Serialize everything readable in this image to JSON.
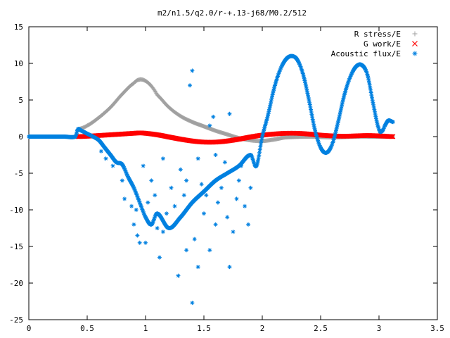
{
  "chart_data": {
    "type": "scatter",
    "title": "m2/n1.5/q2.0/r-+.13-j68/M0.2/512",
    "xlabel": "",
    "ylabel": "",
    "xlim": [
      0,
      3.5
    ],
    "ylim": [
      -25,
      15
    ],
    "x_ticks": [
      0,
      0.5,
      1,
      1.5,
      2,
      2.5,
      3,
      3.5
    ],
    "x_tick_labels": [
      "0",
      "0.5",
      "1",
      "1.5",
      "2",
      "2.5",
      "3",
      "3.5"
    ],
    "y_ticks": [
      -25,
      -20,
      -15,
      -10,
      -5,
      0,
      5,
      10,
      15
    ],
    "y_tick_labels": [
      "-25",
      "-20",
      "-15",
      "-10",
      "-5",
      "0",
      "5",
      "10",
      "15"
    ],
    "grid": false,
    "legend_position": "top-right",
    "series": [
      {
        "name": "R stress/E",
        "marker": "plus",
        "color": "#a0a0a0",
        "points": [
          [
            0.42,
            1.0
          ],
          [
            0.5,
            1.5
          ],
          [
            0.6,
            2.6
          ],
          [
            0.7,
            4.0
          ],
          [
            0.8,
            5.8
          ],
          [
            0.9,
            7.3
          ],
          [
            0.95,
            7.8
          ],
          [
            1.0,
            7.6
          ],
          [
            1.05,
            6.9
          ],
          [
            1.1,
            5.7
          ],
          [
            1.2,
            4.0
          ],
          [
            1.3,
            2.8
          ],
          [
            1.4,
            2.0
          ],
          [
            1.5,
            1.4
          ],
          [
            1.6,
            0.8
          ],
          [
            1.7,
            0.3
          ],
          [
            1.8,
            -0.2
          ],
          [
            1.9,
            -0.5
          ],
          [
            2.0,
            -0.6
          ],
          [
            2.1,
            -0.4
          ],
          [
            2.2,
            -0.1
          ],
          [
            2.4,
            0.0
          ],
          [
            2.6,
            -0.1
          ],
          [
            2.8,
            0.0
          ],
          [
            3.0,
            0.0
          ],
          [
            3.12,
            0.0
          ]
        ]
      },
      {
        "name": "G work/E",
        "marker": "cross",
        "color": "#ff0000",
        "points": [
          [
            0.42,
            0.0
          ],
          [
            0.5,
            0.05
          ],
          [
            0.6,
            0.15
          ],
          [
            0.7,
            0.25
          ],
          [
            0.8,
            0.35
          ],
          [
            0.9,
            0.45
          ],
          [
            0.95,
            0.5
          ],
          [
            1.0,
            0.45
          ],
          [
            1.1,
            0.25
          ],
          [
            1.2,
            -0.05
          ],
          [
            1.3,
            -0.35
          ],
          [
            1.4,
            -0.6
          ],
          [
            1.5,
            -0.75
          ],
          [
            1.6,
            -0.75
          ],
          [
            1.7,
            -0.6
          ],
          [
            1.8,
            -0.35
          ],
          [
            1.9,
            -0.05
          ],
          [
            2.0,
            0.2
          ],
          [
            2.1,
            0.35
          ],
          [
            2.2,
            0.45
          ],
          [
            2.3,
            0.45
          ],
          [
            2.4,
            0.35
          ],
          [
            2.5,
            0.2
          ],
          [
            2.6,
            0.1
          ],
          [
            2.7,
            0.05
          ],
          [
            2.8,
            0.1
          ],
          [
            2.9,
            0.15
          ],
          [
            3.0,
            0.1
          ],
          [
            3.12,
            0.0
          ]
        ]
      },
      {
        "name": "Acoustic flux/E",
        "marker": "star",
        "color": "#0080e0",
        "points": [
          [
            0.0,
            0.0
          ],
          [
            0.1,
            0.0
          ],
          [
            0.2,
            0.0
          ],
          [
            0.3,
            0.0
          ],
          [
            0.4,
            0.0
          ],
          [
            0.42,
            1.0
          ],
          [
            0.45,
            0.8
          ],
          [
            0.5,
            0.4
          ],
          [
            0.55,
            0.0
          ],
          [
            0.6,
            -0.5
          ],
          [
            0.65,
            -1.5
          ],
          [
            0.7,
            -2.5
          ],
          [
            0.75,
            -3.5
          ],
          [
            0.8,
            -3.8
          ],
          [
            0.85,
            -5.5
          ],
          [
            0.9,
            -7.0
          ],
          [
            0.95,
            -9.0
          ],
          [
            1.0,
            -11.0
          ],
          [
            1.05,
            -12.0
          ],
          [
            1.1,
            -10.5
          ],
          [
            1.2,
            -12.5
          ],
          [
            1.3,
            -11.0
          ],
          [
            1.4,
            -9.0
          ],
          [
            1.5,
            -7.5
          ],
          [
            1.6,
            -6.0
          ],
          [
            1.7,
            -5.0
          ],
          [
            1.8,
            -4.0
          ],
          [
            1.9,
            -2.5
          ],
          [
            1.95,
            -4.0
          ],
          [
            2.0,
            0.0
          ],
          [
            2.05,
            3.0
          ],
          [
            2.1,
            6.5
          ],
          [
            2.15,
            9.0
          ],
          [
            2.2,
            10.5
          ],
          [
            2.25,
            11.0
          ],
          [
            2.3,
            10.5
          ],
          [
            2.35,
            8.5
          ],
          [
            2.4,
            5.0
          ],
          [
            2.45,
            1.0
          ],
          [
            2.5,
            -1.5
          ],
          [
            2.55,
            -2.2
          ],
          [
            2.6,
            -1.0
          ],
          [
            2.65,
            2.0
          ],
          [
            2.7,
            5.5
          ],
          [
            2.75,
            8.0
          ],
          [
            2.8,
            9.5
          ],
          [
            2.85,
            9.8
          ],
          [
            2.9,
            8.5
          ],
          [
            2.95,
            4.5
          ],
          [
            3.0,
            1.0
          ],
          [
            3.03,
            0.8
          ],
          [
            3.05,
            1.5
          ],
          [
            3.08,
            2.2
          ],
          [
            3.12,
            2.0
          ],
          [
            0.62,
            -2.0
          ],
          [
            0.66,
            -3.0
          ],
          [
            0.72,
            -4.0
          ],
          [
            0.8,
            -6.0
          ],
          [
            0.82,
            -8.5
          ],
          [
            0.88,
            -9.5
          ],
          [
            0.9,
            -12.0
          ],
          [
            0.93,
            -13.5
          ],
          [
            0.95,
            -14.5
          ],
          [
            1.0,
            -14.5
          ],
          [
            1.02,
            -9.0
          ],
          [
            1.08,
            -8.0
          ],
          [
            1.12,
            -16.5
          ],
          [
            1.15,
            -13.0
          ],
          [
            1.18,
            -10.5
          ],
          [
            1.22,
            -7.0
          ],
          [
            1.25,
            -9.5
          ],
          [
            1.28,
            -19.0
          ],
          [
            1.3,
            -4.5
          ],
          [
            1.33,
            -8.0
          ],
          [
            1.35,
            -6.0
          ],
          [
            1.38,
            7.0
          ],
          [
            1.4,
            9.0
          ],
          [
            1.4,
            -22.7
          ],
          [
            1.42,
            -14.0
          ],
          [
            1.45,
            -3.0
          ],
          [
            1.48,
            -6.5
          ],
          [
            1.5,
            -10.5
          ],
          [
            1.52,
            -8.0
          ],
          [
            1.55,
            -15.5
          ],
          [
            1.58,
            2.7
          ],
          [
            1.6,
            -12.0
          ],
          [
            1.62,
            -9.0
          ],
          [
            1.65,
            -7.0
          ],
          [
            1.68,
            -3.5
          ],
          [
            1.7,
            -11.0
          ],
          [
            1.72,
            3.1
          ],
          [
            1.72,
            -17.8
          ],
          [
            1.75,
            -13.0
          ],
          [
            1.78,
            -8.5
          ],
          [
            1.8,
            -6.0
          ],
          [
            1.82,
            -4.0
          ],
          [
            1.85,
            -9.5
          ],
          [
            1.88,
            -12.0
          ],
          [
            1.9,
            -7.0
          ],
          [
            1.45,
            -17.8
          ],
          [
            1.35,
            -15.5
          ],
          [
            1.25,
            -12.0
          ],
          [
            1.55,
            1.5
          ],
          [
            1.15,
            -3.0
          ],
          [
            1.05,
            -6.0
          ],
          [
            0.98,
            -4.0
          ],
          [
            0.92,
            -10.0
          ],
          [
            1.1,
            -12.5
          ],
          [
            1.6,
            -2.5
          ]
        ]
      }
    ]
  }
}
